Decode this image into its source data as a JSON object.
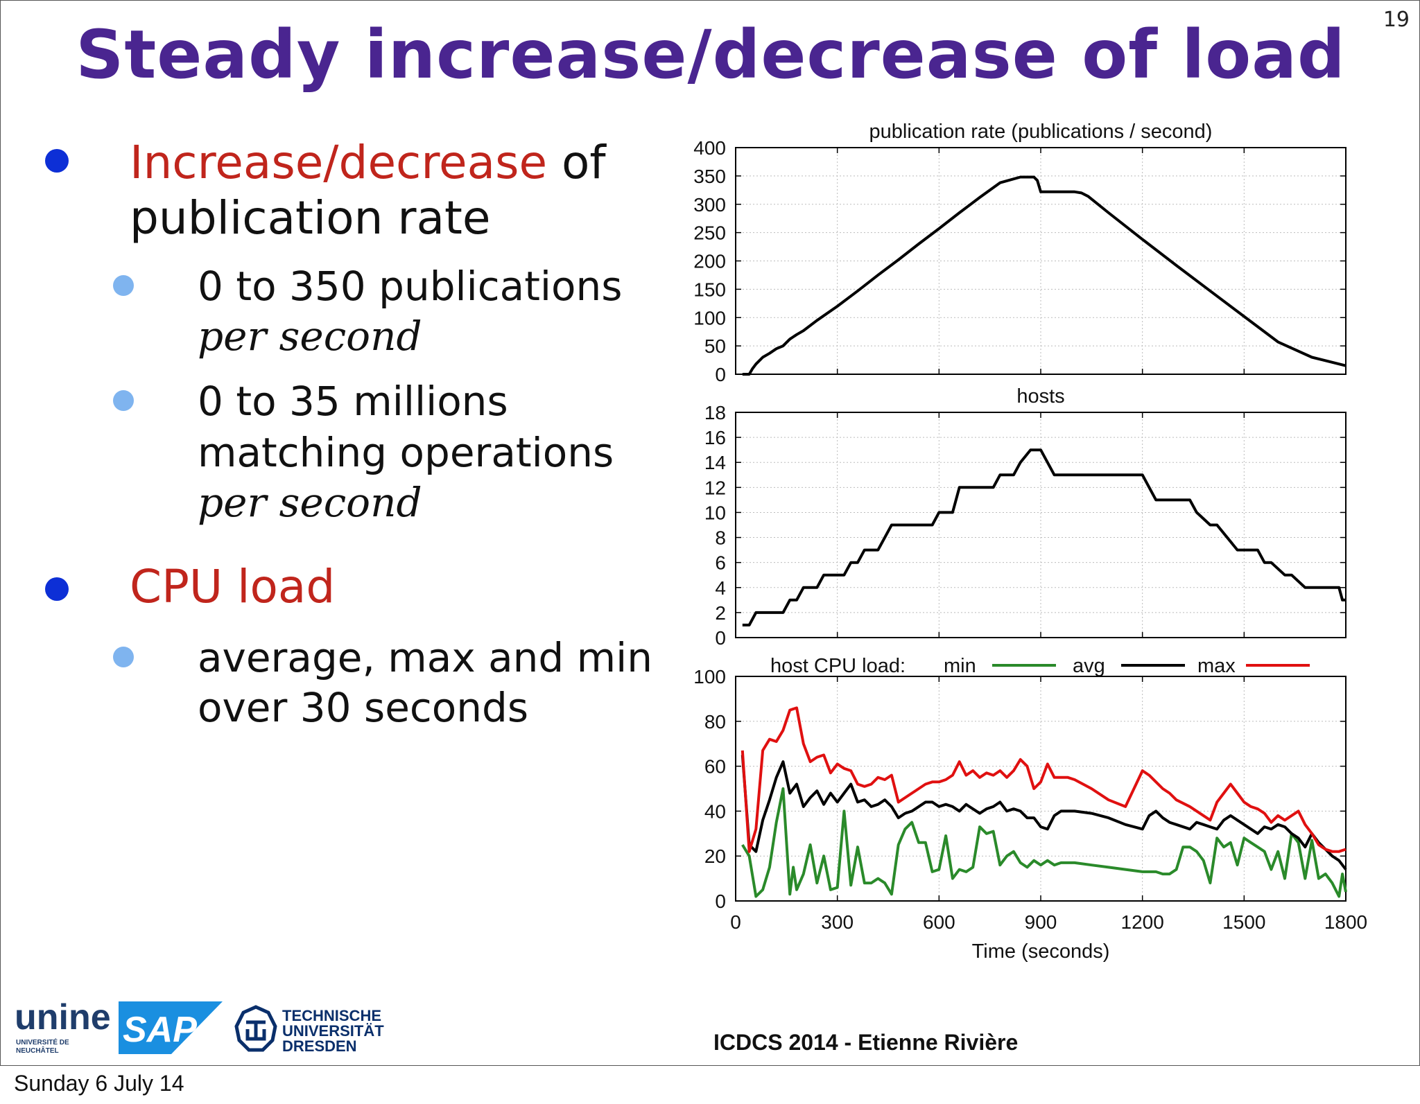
{
  "slide": {
    "number": "19",
    "title": "Steady increase/decrease of load",
    "bullets": {
      "b1_red": "Increase/decrease",
      "b1_rest": " of",
      "b1_line2": "publication rate",
      "b1a_line1": "0 to 350 publications",
      "b1a_line2": "per second",
      "b1b_line1": "0 to 35 millions",
      "b1b_line2": "matching operations",
      "b1b_line3": "per second",
      "b2_red": "CPU load",
      "b2a_line1": "average, max and min",
      "b2a_line2": "over 30 seconds"
    },
    "footer": "ICDCS 2014 - Etienne Rivière",
    "date": "Sunday 6 July 14",
    "logos": {
      "unine_main": "unine",
      "unine_sub1": "UNIVERSITÉ DE",
      "unine_sub2": "NEUCHÂTEL",
      "sap": "SAP",
      "tud1": "TECHNISCHE",
      "tud2": "UNIVERSITÄT",
      "tud3": "DRESDEN"
    },
    "colors": {
      "title": "#4a2590",
      "accent_red": "#c0251c",
      "bullet1": "#0d2fd6",
      "bullet2": "#7fb4ef",
      "sap_blue": "#1a8fe0",
      "tud_blue": "#0a2f6b"
    }
  },
  "chart_data": [
    {
      "type": "line",
      "title": "publication rate (publications / second)",
      "xlim": [
        0,
        1800
      ],
      "ylim": [
        0,
        400
      ],
      "yticks": [
        0,
        50,
        100,
        150,
        200,
        250,
        300,
        350,
        400
      ],
      "xticks": [
        300,
        600,
        900,
        1200,
        1500
      ],
      "grid": true,
      "series": [
        {
          "color": "#000000",
          "x": [
            20,
            40,
            50,
            60,
            80,
            100,
            120,
            140,
            160,
            180,
            200,
            240,
            300,
            360,
            420,
            480,
            540,
            600,
            660,
            720,
            780,
            840,
            880,
            890,
            900,
            910,
            960,
            1000,
            1020,
            1040,
            1100,
            1200,
            1300,
            1400,
            1500,
            1600,
            1700,
            1800
          ],
          "y": [
            0,
            0,
            10,
            18,
            30,
            37,
            45,
            50,
            62,
            70,
            77,
            95,
            120,
            147,
            175,
            202,
            230,
            257,
            285,
            312,
            338,
            348,
            348,
            342,
            322,
            322,
            322,
            322,
            320,
            314,
            285,
            238,
            192,
            147,
            102,
            57,
            30,
            15
          ]
        }
      ]
    },
    {
      "type": "line",
      "title": "hosts",
      "xlim": [
        0,
        1800
      ],
      "ylim": [
        0,
        18
      ],
      "yticks": [
        0,
        2,
        4,
        6,
        8,
        10,
        12,
        14,
        16,
        18
      ],
      "xticks": [
        300,
        600,
        900,
        1200,
        1500
      ],
      "grid": true,
      "series": [
        {
          "color": "#000000",
          "x": [
            20,
            40,
            60,
            140,
            160,
            180,
            200,
            240,
            260,
            320,
            340,
            360,
            380,
            420,
            460,
            580,
            600,
            640,
            660,
            720,
            740,
            760,
            780,
            820,
            840,
            870,
            900,
            940,
            1200,
            1220,
            1240,
            1340,
            1360,
            1400,
            1420,
            1480,
            1500,
            1540,
            1560,
            1580,
            1620,
            1640,
            1680,
            1780,
            1790,
            1800
          ],
          "y": [
            1,
            1,
            2,
            2,
            3,
            3,
            4,
            4,
            5,
            5,
            6,
            6,
            7,
            7,
            9,
            9,
            10,
            10,
            12,
            12,
            12,
            12,
            13,
            13,
            14,
            15,
            15,
            13,
            13,
            12,
            11,
            11,
            10,
            9,
            9,
            7,
            7,
            7,
            6,
            6,
            5,
            5,
            4,
            4,
            3,
            3
          ]
        }
      ]
    },
    {
      "type": "line",
      "title": "",
      "xlabel": "Time (seconds)",
      "legend": {
        "title": "host CPU load:",
        "placement": "top"
      },
      "xlim": [
        0,
        1800
      ],
      "ylim": [
        0,
        100
      ],
      "yticks": [
        0,
        20,
        40,
        60,
        80,
        100
      ],
      "xticks": [
        0,
        300,
        600,
        900,
        1200,
        1500,
        1800
      ],
      "grid": true,
      "series": [
        {
          "name": "min",
          "color": "#2a8a2a",
          "x": [
            20,
            40,
            60,
            80,
            100,
            120,
            140,
            160,
            170,
            180,
            200,
            220,
            240,
            260,
            280,
            300,
            320,
            340,
            360,
            380,
            400,
            420,
            440,
            460,
            480,
            500,
            520,
            540,
            560,
            580,
            600,
            620,
            640,
            660,
            680,
            700,
            720,
            740,
            760,
            780,
            800,
            820,
            840,
            860,
            880,
            900,
            920,
            940,
            960,
            980,
            1000,
            1050,
            1100,
            1150,
            1200,
            1240,
            1260,
            1280,
            1300,
            1320,
            1340,
            1360,
            1380,
            1400,
            1420,
            1440,
            1460,
            1480,
            1500,
            1520,
            1540,
            1560,
            1580,
            1600,
            1620,
            1640,
            1650,
            1660,
            1680,
            1700,
            1720,
            1740,
            1760,
            1780,
            1790,
            1800
          ],
          "y": [
            25,
            20,
            2,
            5,
            15,
            35,
            50,
            3,
            15,
            5,
            12,
            25,
            8,
            20,
            5,
            6,
            40,
            7,
            24,
            8,
            8,
            10,
            8,
            3,
            25,
            32,
            35,
            26,
            26,
            13,
            14,
            29,
            10,
            14,
            13,
            15,
            33,
            30,
            31,
            16,
            20,
            22,
            17,
            15,
            18,
            16,
            18,
            16,
            17,
            17,
            17,
            16,
            15,
            14,
            13,
            13,
            12,
            12,
            14,
            24,
            24,
            22,
            18,
            8,
            28,
            24,
            26,
            16,
            28,
            26,
            24,
            22,
            14,
            22,
            10,
            30,
            28,
            26,
            10,
            27,
            10,
            12,
            8,
            2,
            12,
            4
          ]
        },
        {
          "name": "avg",
          "color": "#000000",
          "x": [
            20,
            40,
            60,
            80,
            100,
            120,
            140,
            160,
            180,
            200,
            220,
            240,
            260,
            280,
            300,
            320,
            340,
            360,
            380,
            400,
            420,
            440,
            460,
            480,
            500,
            520,
            540,
            560,
            580,
            600,
            620,
            640,
            660,
            680,
            700,
            720,
            740,
            760,
            780,
            800,
            820,
            840,
            860,
            880,
            900,
            920,
            940,
            960,
            980,
            1000,
            1050,
            1100,
            1150,
            1200,
            1220,
            1240,
            1260,
            1280,
            1300,
            1340,
            1360,
            1380,
            1400,
            1420,
            1440,
            1460,
            1480,
            1500,
            1520,
            1540,
            1560,
            1580,
            1600,
            1620,
            1640,
            1660,
            1680,
            1700,
            1720,
            1740,
            1760,
            1780,
            1800
          ],
          "y": [
            65,
            25,
            22,
            36,
            45,
            55,
            62,
            48,
            52,
            42,
            46,
            49,
            43,
            48,
            44,
            48,
            52,
            44,
            45,
            42,
            43,
            45,
            42,
            37,
            39,
            40,
            42,
            44,
            44,
            42,
            43,
            42,
            40,
            43,
            41,
            39,
            41,
            42,
            44,
            40,
            41,
            40,
            37,
            37,
            33,
            32,
            38,
            40,
            40,
            40,
            39,
            37,
            34,
            32,
            38,
            40,
            37,
            35,
            34,
            32,
            35,
            34,
            33,
            32,
            36,
            38,
            36,
            34,
            32,
            30,
            33,
            32,
            34,
            33,
            30,
            28,
            24,
            30,
            26,
            23,
            20,
            18,
            14
          ]
        },
        {
          "name": "max",
          "color": "#e01010",
          "x": [
            20,
            40,
            60,
            80,
            100,
            120,
            140,
            160,
            180,
            200,
            220,
            240,
            260,
            280,
            300,
            320,
            340,
            360,
            380,
            400,
            420,
            440,
            460,
            480,
            500,
            520,
            540,
            560,
            580,
            600,
            620,
            640,
            660,
            680,
            700,
            720,
            740,
            760,
            780,
            800,
            820,
            840,
            860,
            880,
            900,
            920,
            940,
            960,
            980,
            1000,
            1050,
            1100,
            1150,
            1200,
            1220,
            1240,
            1260,
            1280,
            1300,
            1340,
            1360,
            1380,
            1400,
            1420,
            1440,
            1460,
            1480,
            1500,
            1520,
            1540,
            1560,
            1580,
            1600,
            1620,
            1640,
            1660,
            1680,
            1700,
            1720,
            1740,
            1760,
            1780,
            1800
          ],
          "y": [
            67,
            22,
            32,
            67,
            72,
            71,
            76,
            85,
            86,
            70,
            62,
            64,
            65,
            57,
            61,
            59,
            58,
            52,
            51,
            52,
            55,
            54,
            56,
            44,
            46,
            48,
            50,
            52,
            53,
            53,
            54,
            56,
            62,
            56,
            58,
            55,
            57,
            56,
            58,
            55,
            58,
            63,
            60,
            50,
            53,
            61,
            55,
            55,
            55,
            54,
            50,
            45,
            42,
            58,
            56,
            53,
            50,
            48,
            45,
            42,
            40,
            38,
            36,
            44,
            48,
            52,
            48,
            44,
            42,
            41,
            39,
            35,
            38,
            36,
            38,
            40,
            34,
            30,
            25,
            23,
            22,
            22,
            23
          ]
        }
      ]
    }
  ]
}
